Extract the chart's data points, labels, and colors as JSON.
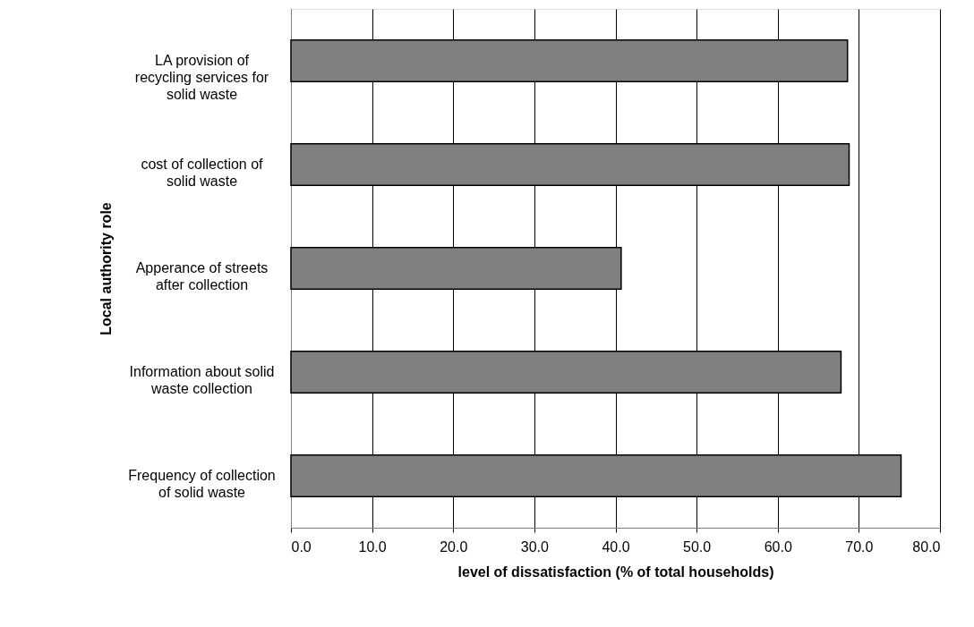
{
  "chart_data": {
    "type": "bar",
    "orientation": "horizontal",
    "categories": [
      "LA provision of recycling services for solid waste",
      "cost of collection of solid waste",
      "Apperance of streets after collection",
      "Information about solid waste collection",
      "Frequency of collection of solid waste"
    ],
    "values": [
      68.6,
      68.8,
      40.7,
      67.8,
      75.2
    ],
    "color": "#808080",
    "xlabel": "level of dissatisfaction (% of total households)",
    "ylabel": "Local authority role",
    "xlim": [
      0,
      80
    ],
    "xticks": [
      {
        "value": 0,
        "label": "0.0"
      },
      {
        "value": 10,
        "label": "10.0"
      },
      {
        "value": 20,
        "label": "20.0"
      },
      {
        "value": 30,
        "label": "30.0"
      },
      {
        "value": 40,
        "label": "40.0"
      },
      {
        "value": 50,
        "label": "50.0"
      },
      {
        "value": 60,
        "label": "60.0"
      },
      {
        "value": 70,
        "label": "70.0"
      },
      {
        "value": 80,
        "label": "80.0"
      }
    ],
    "grid": "x"
  }
}
